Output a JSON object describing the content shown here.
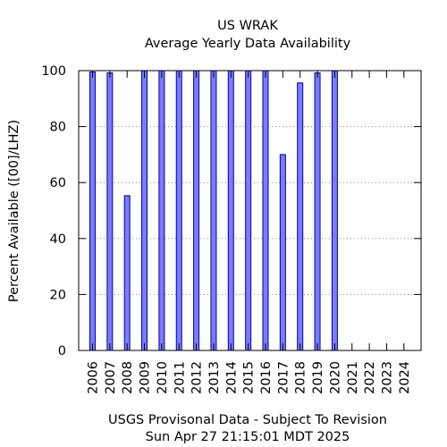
{
  "chart_data": {
    "type": "bar",
    "title": "US WRAK",
    "subtitle": "Average Yearly Data Availability",
    "ylabel": "Percent Available ([00]/LHZ)",
    "xlabel": "",
    "footer_lines": [
      "USGS Provisonal Data - Subject To Revision",
      "Sun Apr 27 21:15:01 MDT 2025"
    ],
    "categories": [
      "2006",
      "2007",
      "2008",
      "2009",
      "2010",
      "2011",
      "2012",
      "2013",
      "2014",
      "2015",
      "2016",
      "2017",
      "2018",
      "2019",
      "2020",
      "2021",
      "2022",
      "2023",
      "2024"
    ],
    "values": [
      99.5,
      99.2,
      55.3,
      100,
      100,
      100,
      100,
      100,
      100,
      100,
      100,
      70.0,
      95.6,
      99.2,
      100,
      null,
      null,
      null,
      null
    ],
    "ylim": [
      0,
      100
    ],
    "yticks": [
      0,
      20,
      40,
      60,
      80,
      100
    ],
    "grid": true,
    "legend": "none",
    "colors": {
      "bar_fill": "#7b7bff",
      "bar_stroke": "#0000a0",
      "grid": "#808080"
    }
  }
}
